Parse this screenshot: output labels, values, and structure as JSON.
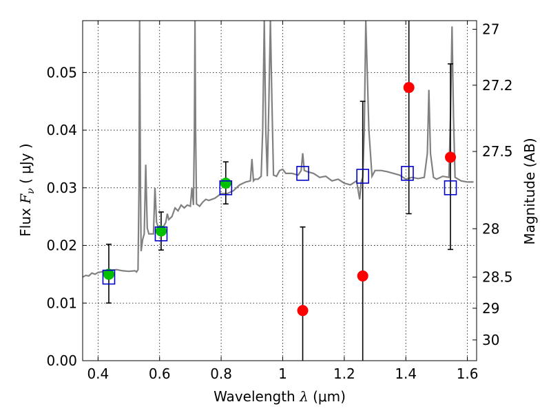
{
  "chart_data": {
    "type": "scatter",
    "xlabel_parts": [
      "Wavelength  ",
      "λ",
      " (μm)"
    ],
    "ylabel_parts": [
      "Flux  ",
      "F",
      "ν",
      "  ( μJy )"
    ],
    "y2label": "Magnitude (AB)",
    "xlim": [
      0.35,
      1.63
    ],
    "ylim": [
      0.0,
      0.059
    ],
    "xticks": [
      0.4,
      0.6,
      0.8,
      1.0,
      1.2,
      1.4,
      1.6
    ],
    "xtick_labels": [
      "0.4",
      "0.6",
      "0.8",
      "1",
      "1.2",
      "1.4",
      "1.6"
    ],
    "yticks": [
      0.0,
      0.01,
      0.02,
      0.03,
      0.04,
      0.05
    ],
    "ytick_labels": [
      "0.00",
      "0.01",
      "0.02",
      "0.03",
      "0.04",
      "0.05"
    ],
    "y2ticks": [
      {
        "label": "27",
        "flux": 0.0575
      },
      {
        "label": "27.2",
        "flux": 0.0478
      },
      {
        "label": "27.5",
        "flux": 0.0363
      },
      {
        "label": "28",
        "flux": 0.0229
      },
      {
        "label": "28.5",
        "flux": 0.0145
      },
      {
        "label": "29",
        "flux": 0.0091
      },
      {
        "label": "30",
        "flux": 0.0036
      }
    ],
    "grid": true,
    "colors": {
      "spectrum": "#808080",
      "detected": "#00c000",
      "measured": "#ff0000",
      "model": "#0000cc",
      "errorbar": "#000000"
    },
    "series": [
      {
        "kind": "line",
        "color": "#808080",
        "x": [
          0.35,
          0.36,
          0.37,
          0.38,
          0.39,
          0.4,
          0.42,
          0.44,
          0.46,
          0.48,
          0.5,
          0.52,
          0.525,
          0.53,
          0.533,
          0.535,
          0.538,
          0.54,
          0.545,
          0.55,
          0.555,
          0.56,
          0.565,
          0.57,
          0.58,
          0.585,
          0.59,
          0.6,
          0.61,
          0.62,
          0.625,
          0.63,
          0.64,
          0.65,
          0.66,
          0.67,
          0.68,
          0.69,
          0.7,
          0.705,
          0.71,
          0.713,
          0.715,
          0.717,
          0.72,
          0.73,
          0.74,
          0.75,
          0.76,
          0.78,
          0.8,
          0.82,
          0.84,
          0.86,
          0.88,
          0.895,
          0.9,
          0.905,
          0.91,
          0.92,
          0.93,
          0.935,
          0.94,
          0.945,
          0.95,
          0.955,
          0.96,
          0.965,
          0.97,
          0.98,
          0.99,
          1.0,
          1.01,
          1.03,
          1.05,
          1.06,
          1.065,
          1.07,
          1.08,
          1.1,
          1.12,
          1.14,
          1.16,
          1.18,
          1.2,
          1.22,
          1.24,
          1.25,
          1.255,
          1.26,
          1.265,
          1.27,
          1.28,
          1.29,
          1.3,
          1.32,
          1.34,
          1.36,
          1.38,
          1.4,
          1.42,
          1.44,
          1.46,
          1.47,
          1.475,
          1.48,
          1.49,
          1.5,
          1.52,
          1.54,
          1.545,
          1.55,
          1.555,
          1.56,
          1.58,
          1.6,
          1.62
        ],
        "y": [
          0.0145,
          0.0148,
          0.0147,
          0.0152,
          0.015,
          0.0153,
          0.0155,
          0.0157,
          0.0158,
          0.0156,
          0.0155,
          0.0156,
          0.0154,
          0.0158,
          0.03,
          0.059,
          0.03,
          0.019,
          0.021,
          0.022,
          0.034,
          0.023,
          0.022,
          0.022,
          0.022,
          0.03,
          0.024,
          0.0225,
          0.023,
          0.024,
          0.0255,
          0.0245,
          0.025,
          0.0265,
          0.026,
          0.027,
          0.0265,
          0.027,
          0.0268,
          0.03,
          0.027,
          0.04,
          0.059,
          0.04,
          0.0272,
          0.0268,
          0.0275,
          0.028,
          0.0278,
          0.0282,
          0.029,
          0.029,
          0.0295,
          0.0305,
          0.031,
          0.0312,
          0.035,
          0.0312,
          0.0315,
          0.0315,
          0.032,
          0.04,
          0.059,
          0.04,
          0.032,
          0.045,
          0.059,
          0.045,
          0.0322,
          0.032,
          0.033,
          0.0332,
          0.0325,
          0.0325,
          0.0322,
          0.033,
          0.036,
          0.033,
          0.0328,
          0.0325,
          0.0318,
          0.032,
          0.0312,
          0.0315,
          0.0308,
          0.0305,
          0.0312,
          0.028,
          0.031,
          0.0318,
          0.04,
          0.059,
          0.04,
          0.032,
          0.033,
          0.033,
          0.0328,
          0.0325,
          0.0322,
          0.0315,
          0.0318,
          0.0316,
          0.0318,
          0.036,
          0.047,
          0.036,
          0.0318,
          0.0315,
          0.032,
          0.0318,
          0.042,
          0.058,
          0.042,
          0.0318,
          0.0312,
          0.031,
          0.031
        ]
      },
      {
        "kind": "points",
        "marker": "filled-circle",
        "color": "#00c000",
        "x": [
          0.435,
          0.605,
          0.815
        ],
        "y": [
          0.015,
          0.0225,
          0.0308
        ]
      },
      {
        "kind": "points",
        "marker": "filled-circle",
        "color": "#ff0000",
        "x": [
          1.065,
          1.26,
          1.41,
          1.545
        ],
        "y": [
          0.0087,
          0.0147,
          0.0474,
          0.0353
        ]
      },
      {
        "kind": "points",
        "marker": "open-square",
        "color": "#0000cc",
        "x": [
          0.435,
          0.605,
          0.815,
          1.065,
          1.26,
          1.405,
          1.545
        ],
        "y": [
          0.0145,
          0.022,
          0.03,
          0.0325,
          0.032,
          0.0325,
          0.03
        ]
      }
    ],
    "errorbars": [
      {
        "x": 0.435,
        "y_low": 0.01,
        "y_high": 0.0202
      },
      {
        "x": 0.605,
        "y_low": 0.0192,
        "y_high": 0.0258
      },
      {
        "x": 0.815,
        "y_low": 0.0272,
        "y_high": 0.0345
      },
      {
        "x": 1.065,
        "y_low": 0.0,
        "y_high": 0.0232
      },
      {
        "x": 1.26,
        "y_low": 0.0,
        "y_high": 0.045
      },
      {
        "x": 1.41,
        "y_low": 0.0255,
        "y_high": 0.059
      },
      {
        "x": 1.545,
        "y_low": 0.0193,
        "y_high": 0.0515
      }
    ]
  }
}
